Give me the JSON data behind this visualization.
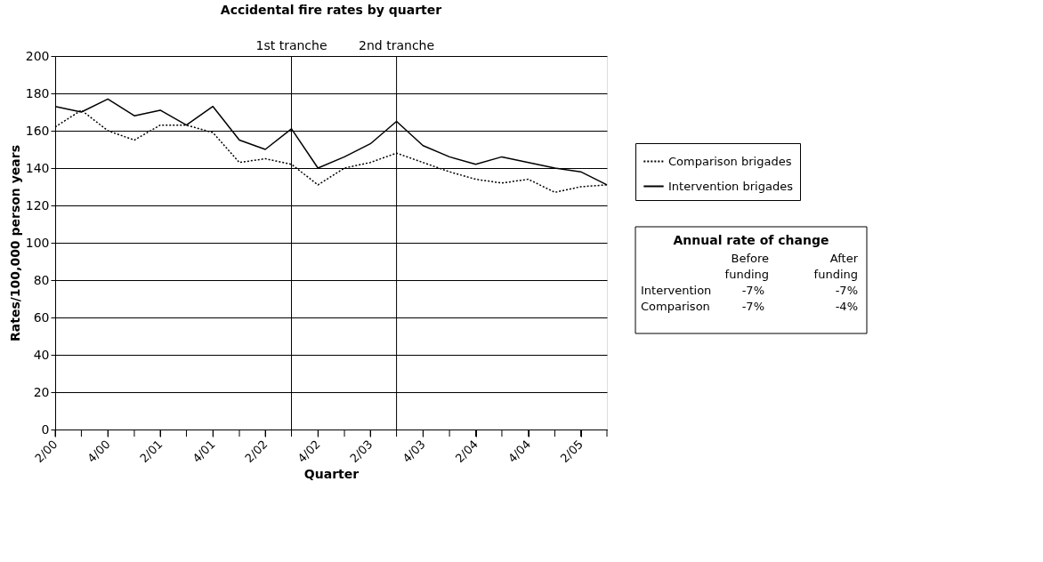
{
  "chart_data": {
    "type": "line",
    "title": "Accidental fire rates by quarter",
    "xlabel": "Quarter",
    "ylabel": "Rates/100,000 person years",
    "x": [
      "2000-04",
      "2000-07",
      "2000-10",
      "2001-01",
      "2001-04",
      "2001-07",
      "2001-10",
      "2002-01",
      "2002-04",
      "2002-07",
      "2002-10",
      "2003-01",
      "2003-04",
      "2003-07",
      "2003-10",
      "2004-01",
      "2004-04",
      "2004-07",
      "2004-10",
      "2005-01",
      "2005-04",
      "2005-07"
    ],
    "xlim": [
      "2000-04",
      "2005-07"
    ],
    "xticks": [
      {
        "value": "2000-04",
        "label": "2/00"
      },
      {
        "value": "2000-07",
        "label": null
      },
      {
        "value": "2000-10",
        "label": "4/00"
      },
      {
        "value": "2001-01",
        "label": null
      },
      {
        "value": "2001-04",
        "label": "2/01"
      },
      {
        "value": "2001-07",
        "label": null
      },
      {
        "value": "2001-10",
        "label": "4/01"
      },
      {
        "value": "2002-01",
        "label": null
      },
      {
        "value": "2002-04",
        "label": "2/02"
      },
      {
        "value": "2002-07",
        "label": null
      },
      {
        "value": "2002-10",
        "label": "4/02"
      },
      {
        "value": "2003-01",
        "label": null
      },
      {
        "value": "2003-04",
        "label": "2/03"
      },
      {
        "value": "2003-07",
        "label": null
      },
      {
        "value": "2003-10",
        "label": "4/03"
      },
      {
        "value": "2004-01",
        "label": null
      },
      {
        "value": "2004-04",
        "label": "2/04"
      },
      {
        "value": "2004-07",
        "label": null
      },
      {
        "value": "2004-10",
        "label": "4/04"
      },
      {
        "value": "2005-01",
        "label": null
      },
      {
        "value": "2005-04",
        "label": "2/05"
      },
      {
        "value": "2005-07",
        "label": null
      }
    ],
    "ylim": [
      0,
      200
    ],
    "yticks": [
      0,
      20,
      40,
      60,
      80,
      100,
      120,
      140,
      160,
      180,
      200
    ],
    "grid": "y",
    "legend": "right",
    "series": [
      {
        "name": "Comparison brigades",
        "color": "#000000",
        "line_style": "dotted",
        "values": [
          162,
          171,
          160,
          155,
          163,
          163,
          159,
          143,
          145,
          142,
          131,
          140,
          143,
          148,
          143,
          138,
          134,
          132,
          134,
          127,
          130,
          131
        ]
      },
      {
        "name": "Intervention brigades",
        "color": "#000000",
        "line_style": "solid",
        "values": [
          173,
          170,
          177,
          168,
          171,
          163,
          173,
          155,
          150,
          161,
          140,
          146,
          153,
          165,
          152,
          146,
          142,
          146,
          143,
          140,
          138,
          131
        ]
      }
    ],
    "ref_lines": [
      {
        "axis": "x",
        "value": "2002-07",
        "label": "1st tranche"
      },
      {
        "axis": "x",
        "value": "2003-07",
        "label": "2nd tranche"
      }
    ],
    "annotations": [
      "Annual rate of change",
      "Before funding",
      "After funding",
      "Intervention",
      "-7%",
      "-7%",
      "Comparison",
      "-7%",
      "-4%"
    ]
  }
}
